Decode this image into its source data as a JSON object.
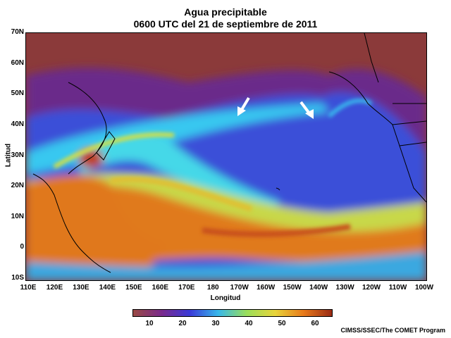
{
  "title": {
    "line1": "Agua precipitable",
    "line2": "0600 UTC del 21 de septiembre de 2011"
  },
  "axes": {
    "ylabel": "Latitud",
    "xlabel": "Longitud",
    "lat_ticks": [
      "70N",
      "60N",
      "50N",
      "40N",
      "30N",
      "20N",
      "10N",
      "0",
      "10S"
    ],
    "lon_ticks": [
      "110E",
      "120E",
      "130E",
      "140E",
      "150E",
      "160E",
      "170E",
      "180",
      "170W",
      "160W",
      "150W",
      "140W",
      "130W",
      "120W",
      "110W",
      "100W"
    ]
  },
  "colorbar": {
    "tick_labels": [
      "10",
      "20",
      "30",
      "40",
      "50",
      "60"
    ],
    "colors": [
      "#9a4a44",
      "#7a2a8c",
      "#3a3ad8",
      "#38b8ea",
      "#9ade5a",
      "#e8d43a",
      "#e87a1a",
      "#9a2a14"
    ]
  },
  "annotations": {
    "arrows": [
      "arrow-pointing-southwest",
      "arrow-pointing-southeast"
    ]
  },
  "credit": "CIMSS/SSEC/The COMET Program",
  "colors": {
    "dry": "#8b3a3a",
    "purple": "#7a2a8c",
    "blue": "#3a50e0",
    "cyan": "#38c8f0",
    "yellow": "#e8d43a",
    "orange": "#e07a1a",
    "land": "#a04a40"
  }
}
